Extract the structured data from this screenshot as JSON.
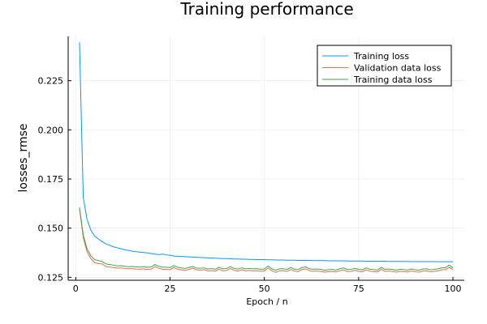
{
  "chart_data": {
    "type": "line",
    "title": "Training performance",
    "xlabel": "Epoch / n",
    "ylabel": "losses_rmse",
    "xlim": [
      -2,
      103
    ],
    "ylim": [
      0.1235,
      0.2475
    ],
    "x_ticks": [
      0,
      25,
      50,
      75,
      100
    ],
    "x_tick_labels": [
      "0",
      "25",
      "50",
      "75",
      "100"
    ],
    "y_ticks": [
      0.125,
      0.15,
      0.175,
      0.2,
      0.225
    ],
    "y_tick_labels": [
      "0.125",
      "0.150",
      "0.175",
      "0.200",
      "0.225"
    ],
    "grid": true,
    "legend_position": "top-right",
    "x": [
      1,
      2,
      3,
      4,
      5,
      6,
      7,
      8,
      9,
      10,
      11,
      12,
      13,
      14,
      15,
      16,
      17,
      18,
      19,
      20,
      21,
      22,
      23,
      24,
      25,
      26,
      27,
      28,
      29,
      30,
      31,
      32,
      33,
      34,
      35,
      36,
      37,
      38,
      39,
      40,
      41,
      42,
      43,
      44,
      45,
      46,
      47,
      48,
      49,
      50,
      51,
      52,
      53,
      54,
      55,
      56,
      57,
      58,
      59,
      60,
      61,
      62,
      63,
      64,
      65,
      66,
      67,
      68,
      69,
      70,
      71,
      72,
      73,
      74,
      75,
      76,
      77,
      78,
      79,
      80,
      81,
      82,
      83,
      84,
      85,
      86,
      87,
      88,
      89,
      90,
      91,
      92,
      93,
      94,
      95,
      96,
      97,
      98,
      99,
      100
    ],
    "series": [
      {
        "name": "Training loss",
        "color": "#009AFA",
        "values": [
          0.2445,
          0.1655,
          0.1545,
          0.149,
          0.146,
          0.1445,
          0.1432,
          0.142,
          0.1413,
          0.1405,
          0.14,
          0.1395,
          0.139,
          0.1387,
          0.1383,
          0.138,
          0.1378,
          0.1376,
          0.1374,
          0.1371,
          0.1368,
          0.1366,
          0.1368,
          0.1364,
          0.1362,
          0.1358,
          0.1357,
          0.1356,
          0.1355,
          0.1354,
          0.1353,
          0.1352,
          0.1351,
          0.135,
          0.1349,
          0.1348,
          0.1347,
          0.1346,
          0.1345,
          0.1345,
          0.1344,
          0.1343,
          0.1343,
          0.1342,
          0.1342,
          0.1341,
          0.1341,
          0.134,
          0.134,
          0.134,
          0.1339,
          0.1339,
          0.1338,
          0.1338,
          0.1338,
          0.1337,
          0.1337,
          0.1337,
          0.1336,
          0.1336,
          0.1336,
          0.1336,
          0.1335,
          0.1335,
          0.1335,
          0.1335,
          0.1334,
          0.1334,
          0.1334,
          0.1334,
          0.1334,
          0.1333,
          0.1333,
          0.1333,
          0.1333,
          0.1333,
          0.1332,
          0.1332,
          0.1332,
          0.1332,
          0.1332,
          0.1332,
          0.1331,
          0.1331,
          0.1331,
          0.1331,
          0.1331,
          0.1331,
          0.133,
          0.133,
          0.133,
          0.133,
          0.133,
          0.133,
          0.133,
          0.1329,
          0.1329,
          0.1329,
          0.1329,
          0.1329
        ]
      },
      {
        "name": "Validation data loss",
        "color": "#E26F46",
        "values": [
          0.16,
          0.145,
          0.138,
          0.1345,
          0.1325,
          0.132,
          0.1318,
          0.1305,
          0.1302,
          0.13,
          0.1297,
          0.1298,
          0.1295,
          0.1293,
          0.1294,
          0.1292,
          0.1291,
          0.1293,
          0.129,
          0.1292,
          0.1305,
          0.1296,
          0.1291,
          0.129,
          0.1289,
          0.13,
          0.1291,
          0.1288,
          0.1285,
          0.129,
          0.1296,
          0.1288,
          0.1286,
          0.1289,
          0.1282,
          0.1284,
          0.1281,
          0.1292,
          0.1283,
          0.1285,
          0.1295,
          0.1285,
          0.1282,
          0.1288,
          0.1283,
          0.1285,
          0.1283,
          0.1284,
          0.1281,
          0.1282,
          0.1298,
          0.1283,
          0.1275,
          0.1283,
          0.1284,
          0.128,
          0.129,
          0.1281,
          0.1279,
          0.129,
          0.1293,
          0.1283,
          0.1281,
          0.1282,
          0.128,
          0.1276,
          0.1279,
          0.128,
          0.1277,
          0.1284,
          0.1288,
          0.1279,
          0.128,
          0.1286,
          0.128,
          0.1278,
          0.1288,
          0.1281,
          0.1279,
          0.1277,
          0.1291,
          0.128,
          0.1282,
          0.128,
          0.1276,
          0.1281,
          0.1279,
          0.1277,
          0.1282,
          0.1278,
          0.1276,
          0.1282,
          0.1283,
          0.1278,
          0.128,
          0.1283,
          0.1288,
          0.1289,
          0.13,
          0.1288
        ]
      },
      {
        "name": "Training data loss",
        "color": "#3EA44E",
        "values": [
          0.1605,
          0.1465,
          0.1395,
          0.136,
          0.134,
          0.1335,
          0.133,
          0.1318,
          0.1315,
          0.1312,
          0.1308,
          0.1309,
          0.1306,
          0.1304,
          0.1305,
          0.1303,
          0.1302,
          0.1304,
          0.1301,
          0.1303,
          0.1315,
          0.1306,
          0.1302,
          0.1301,
          0.13,
          0.131,
          0.1301,
          0.1298,
          0.1295,
          0.13,
          0.1305,
          0.1297,
          0.1296,
          0.1298,
          0.1292,
          0.1294,
          0.1291,
          0.1301,
          0.1293,
          0.1295,
          0.1305,
          0.1295,
          0.1292,
          0.1298,
          0.1293,
          0.1295,
          0.1293,
          0.1294,
          0.1291,
          0.1292,
          0.1308,
          0.1293,
          0.1286,
          0.1293,
          0.1294,
          0.129,
          0.13,
          0.1291,
          0.1289,
          0.13,
          0.1303,
          0.1293,
          0.1291,
          0.1292,
          0.129,
          0.1286,
          0.1289,
          0.129,
          0.1287,
          0.1294,
          0.1298,
          0.1289,
          0.129,
          0.1296,
          0.129,
          0.1288,
          0.1298,
          0.1291,
          0.1289,
          0.1287,
          0.1301,
          0.129,
          0.1292,
          0.129,
          0.1286,
          0.1291,
          0.1289,
          0.1287,
          0.1292,
          0.1288,
          0.1286,
          0.1292,
          0.1293,
          0.1288,
          0.129,
          0.1293,
          0.1298,
          0.1299,
          0.1312,
          0.1298
        ]
      }
    ]
  }
}
